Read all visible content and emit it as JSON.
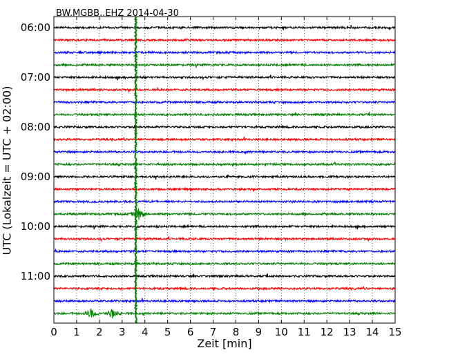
{
  "chart_data": {
    "type": "line",
    "title": "BW.MGBB..EHZ 2014-04-30",
    "xlabel": "Zeit  [min]",
    "ylabel": "UTC (Lokalzeit = UTC + 02:00)",
    "xlim": [
      0,
      15
    ],
    "x_ticks": [
      0,
      1,
      2,
      3,
      4,
      5,
      6,
      7,
      8,
      9,
      10,
      11,
      12,
      13,
      14,
      15
    ],
    "y_ticks": [
      "06:00",
      "07:00",
      "08:00",
      "09:00",
      "10:00",
      "11:00"
    ],
    "trace_minutes": 15,
    "first_trace": "06:00",
    "trace_count": 24,
    "trace_colors": [
      "#000000",
      "#ff0000",
      "#0000ff",
      "#008000"
    ],
    "grid": "vertical dotted",
    "events": [
      {
        "minute": 3.6,
        "description": "earthquake signal spanning all traces"
      },
      {
        "minute": 3.75,
        "trace": "09:45",
        "amplitude": "large"
      },
      {
        "minute": 1.65,
        "trace": "11:45",
        "amplitude": "medium"
      },
      {
        "minute": 2.55,
        "trace": "11:45",
        "amplitude": "medium"
      }
    ]
  }
}
